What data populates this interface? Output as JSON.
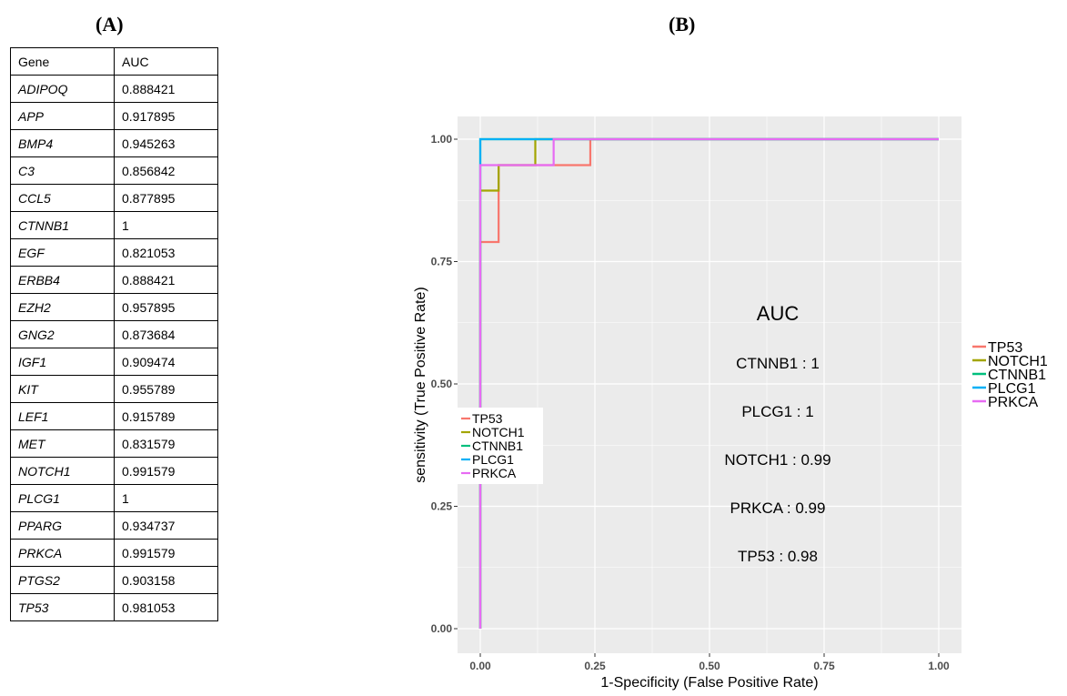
{
  "panels": {
    "a_label": "(A)",
    "b_label": "(B)"
  },
  "table": {
    "headers": [
      "Gene",
      "AUC"
    ],
    "rows": [
      [
        "ADIPOQ",
        "0.888421"
      ],
      [
        "APP",
        "0.917895"
      ],
      [
        "BMP4",
        "0.945263"
      ],
      [
        "C3",
        "0.856842"
      ],
      [
        "CCL5",
        "0.877895"
      ],
      [
        "CTNNB1",
        "1"
      ],
      [
        "EGF",
        "0.821053"
      ],
      [
        "ERBB4",
        "0.888421"
      ],
      [
        "EZH2",
        "0.957895"
      ],
      [
        "GNG2",
        "0.873684"
      ],
      [
        "IGF1",
        "0.909474"
      ],
      [
        "KIT",
        "0.955789"
      ],
      [
        "LEF1",
        "0.915789"
      ],
      [
        "MET",
        "0.831579"
      ],
      [
        "NOTCH1",
        "0.991579"
      ],
      [
        "PLCG1",
        "1"
      ],
      [
        "PPARG",
        "0.934737"
      ],
      [
        "PRKCA",
        "0.991579"
      ],
      [
        "PTGS2",
        "0.903158"
      ],
      [
        "TP53",
        "0.981053"
      ]
    ]
  },
  "chart_data": {
    "type": "line",
    "xlabel": "1-Specificity (False Positive Rate)",
    "ylabel": "sensitivity (True Positive Rate)",
    "xlim": [
      0,
      1
    ],
    "ylim": [
      0,
      1
    ],
    "xticks": [
      "0.00",
      "0.25",
      "0.50",
      "0.75",
      "1.00"
    ],
    "yticks": [
      "0.00",
      "0.25",
      "0.50",
      "0.75",
      "1.00"
    ],
    "grid": true,
    "legend_placement": "right",
    "inner_legend_placement": "left-middle",
    "annotation_title": "AUC",
    "annotations": [
      "CTNNB1 :  1",
      "PLCG1 :  1",
      "NOTCH1 :  0.99",
      "PRKCA :  0.99",
      "TP53 :  0.98"
    ],
    "series": [
      {
        "name": "TP53",
        "color": "#F8766D",
        "x": [
          0,
          0,
          0.04,
          0.04,
          0.24,
          0.24,
          1.0
        ],
        "y": [
          0,
          0.79,
          0.79,
          0.947,
          0.947,
          1.0,
          1.0
        ]
      },
      {
        "name": "NOTCH1",
        "color": "#A3A500",
        "x": [
          0,
          0,
          0.04,
          0.04,
          0.12,
          0.12,
          1.0
        ],
        "y": [
          0,
          0.895,
          0.895,
          0.947,
          0.947,
          1.0,
          1.0
        ]
      },
      {
        "name": "CTNNB1",
        "color": "#00BF7D",
        "x": [
          0,
          0,
          1.0
        ],
        "y": [
          0,
          1.0,
          1.0
        ]
      },
      {
        "name": "PLCG1",
        "color": "#00B0F6",
        "x": [
          0,
          0,
          1.0
        ],
        "y": [
          0,
          1.0,
          1.0
        ]
      },
      {
        "name": "PRKCA",
        "color": "#E76BF3",
        "x": [
          0,
          0,
          0.16,
          0.16,
          1.0
        ],
        "y": [
          0,
          0.947,
          0.947,
          1.0,
          1.0
        ]
      }
    ]
  }
}
